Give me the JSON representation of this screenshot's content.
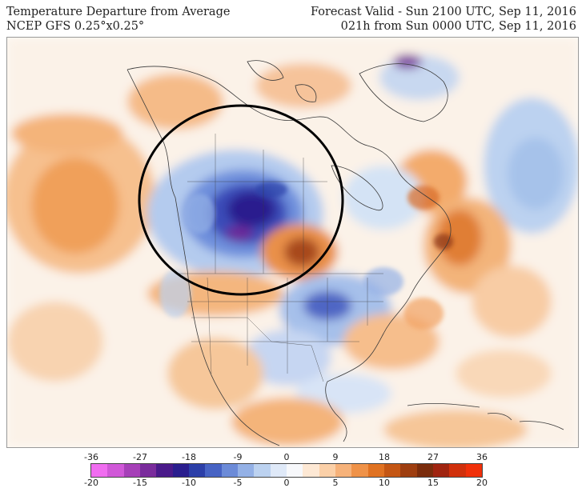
{
  "header": {
    "title_left": "Temperature Departure from Average",
    "subtitle_left": "NCEP GFS 0.25°x0.25°",
    "title_right": "Forecast Valid - Sun 2100 UTC, Sep 11, 2016",
    "subtitle_right": "021h from Sun 0000 UTC, Sep 11, 2016"
  },
  "map": {
    "region": "North America",
    "annotation": "black circle around northern Rockies / Canadian Prairies cold anomaly"
  },
  "colorbar": {
    "ticks_top": [
      "-36",
      "-27",
      "-18",
      "-9",
      "0",
      "9",
      "18",
      "27",
      "36"
    ],
    "ticks_bottom": [
      "-20",
      "-15",
      "-10",
      "-5",
      "0",
      "5",
      "10",
      "15",
      "20"
    ],
    "colors": [
      "#f06df0",
      "#d058d8",
      "#a640b8",
      "#7a2c9c",
      "#4a1a8a",
      "#2a1e8e",
      "#2c3fa8",
      "#4763c4",
      "#6c8bd8",
      "#94b1e6",
      "#bcd2f0",
      "#dfe9f8",
      "#f7f8fb",
      "#fde8d4",
      "#fbd0a8",
      "#f6b27a",
      "#ef9248",
      "#e07222",
      "#c45614",
      "#9e3e10",
      "#7a2c0c",
      "#a02410",
      "#d0300c",
      "#f0300a"
    ]
  }
}
